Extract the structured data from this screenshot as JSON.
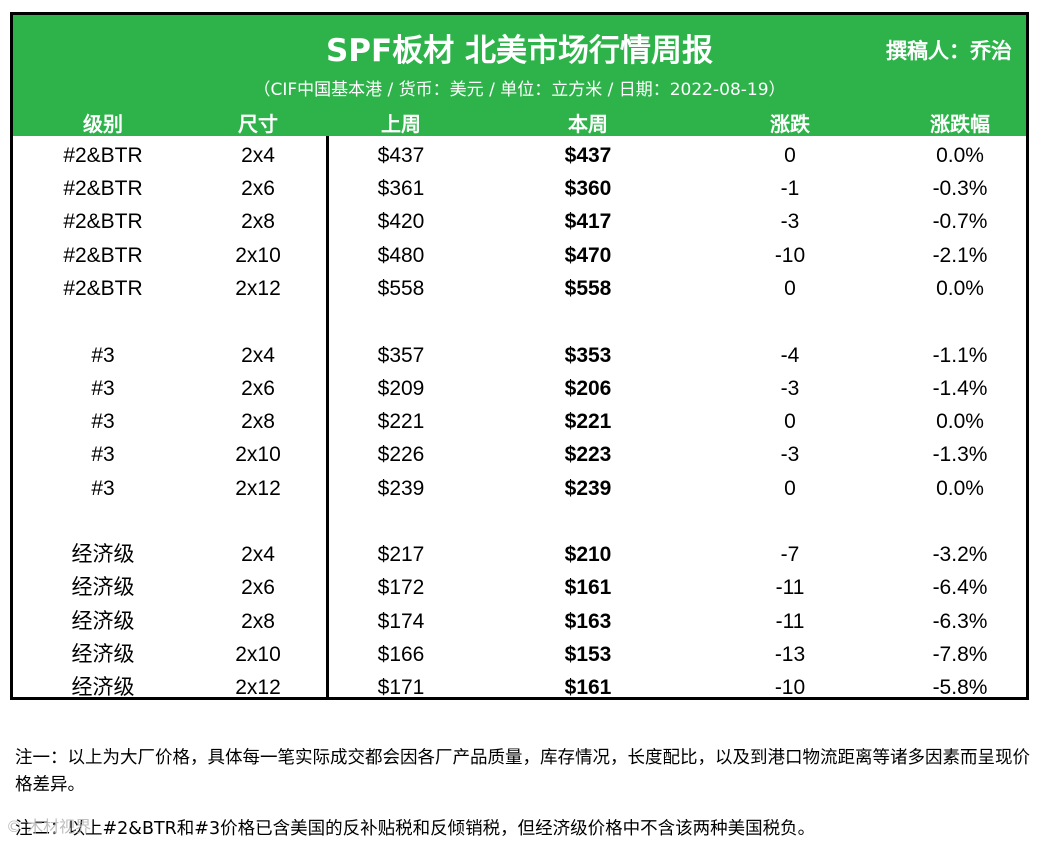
{
  "header": {
    "title": "SPF板材 北美市场行情周报",
    "author": "撰稿人：乔治",
    "subtitle": "（CIF中国基本港 / 货币：美元 / 单位：立方米 / 日期：2022-08-19）",
    "bg_color": "#2db34a"
  },
  "columns": [
    "级别",
    "尺寸",
    "上周",
    "本周",
    "涨跌",
    "涨跌幅"
  ],
  "rows": [
    {
      "grade": "#2&BTR",
      "size": "2x4",
      "last": "$437",
      "this": "$437",
      "change": "0",
      "pct": "0.0%"
    },
    {
      "grade": "#2&BTR",
      "size": "2x6",
      "last": "$361",
      "this": "$360",
      "change": "-1",
      "pct": "-0.3%"
    },
    {
      "grade": "#2&BTR",
      "size": "2x8",
      "last": "$420",
      "this": "$417",
      "change": "-3",
      "pct": "-0.7%"
    },
    {
      "grade": "#2&BTR",
      "size": "2x10",
      "last": "$480",
      "this": "$470",
      "change": "-10",
      "pct": "-2.1%"
    },
    {
      "grade": "#2&BTR",
      "size": "2x12",
      "last": "$558",
      "this": "$558",
      "change": "0",
      "pct": "0.0%"
    },
    {
      "grade": "#3",
      "size": "2x4",
      "last": "$357",
      "this": "$353",
      "change": "-4",
      "pct": "-1.1%"
    },
    {
      "grade": "#3",
      "size": "2x6",
      "last": "$209",
      "this": "$206",
      "change": "-3",
      "pct": "-1.4%"
    },
    {
      "grade": "#3",
      "size": "2x8",
      "last": "$221",
      "this": "$221",
      "change": "0",
      "pct": "0.0%"
    },
    {
      "grade": "#3",
      "size": "2x10",
      "last": "$226",
      "this": "$223",
      "change": "-3",
      "pct": "-1.3%"
    },
    {
      "grade": "#3",
      "size": "2x12",
      "last": "$239",
      "this": "$239",
      "change": "0",
      "pct": "0.0%"
    },
    {
      "grade": "经济级",
      "size": "2x4",
      "last": "$217",
      "this": "$210",
      "change": "-7",
      "pct": "-3.2%"
    },
    {
      "grade": "经济级",
      "size": "2x6",
      "last": "$172",
      "this": "$161",
      "change": "-11",
      "pct": "-6.4%"
    },
    {
      "grade": "经济级",
      "size": "2x8",
      "last": "$174",
      "this": "$163",
      "change": "-11",
      "pct": "-6.3%"
    },
    {
      "grade": "经济级",
      "size": "2x10",
      "last": "$166",
      "this": "$153",
      "change": "-13",
      "pct": "-7.8%"
    },
    {
      "grade": "经济级",
      "size": "2x12",
      "last": "$171",
      "this": "$161",
      "change": "-10",
      "pct": "-5.8%"
    }
  ],
  "notes": {
    "note1": "注一：以上为大厂价格，具体每一笔实际成交都会因各厂产品质量，库存情况，长度配比，以及到港口物流距离等诸多因素而呈现价格差异。",
    "note2": "注二：以上#2&BTR和#3价格已含美国的反补贴税和反倾销税，但经济级价格中不含该两种美国税负。",
    "watermark": "© 木材视界"
  }
}
